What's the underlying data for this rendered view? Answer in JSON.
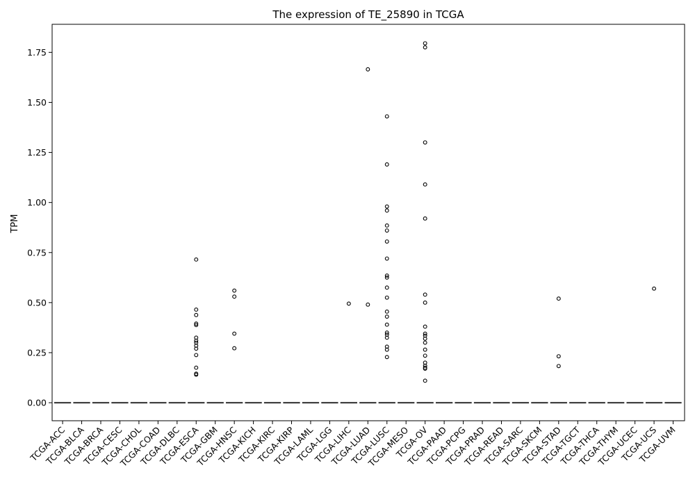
{
  "chart_data": {
    "type": "box",
    "title": "The expression of TE_25890 in TCGA",
    "xlabel": "",
    "ylabel": "TPM",
    "ylim": [
      -0.09,
      1.89
    ],
    "yticks": [
      0.0,
      0.25,
      0.5,
      0.75,
      1.0,
      1.25,
      1.5,
      1.75
    ],
    "ytick_labels": [
      "0.00",
      "0.25",
      "0.50",
      "0.75",
      "1.00",
      "1.25",
      "1.50",
      "1.75"
    ],
    "grid": false,
    "legend": "none",
    "colors": {
      "box_line": "#3f3f3f",
      "outlier": "#000000",
      "axis": "#000000"
    },
    "categories": [
      "TCGA-ACC",
      "TCGA-BLCA",
      "TCGA-BRCA",
      "TCGA-CESC",
      "TCGA-CHOL",
      "TCGA-COAD",
      "TCGA-DLBC",
      "TCGA-ESCA",
      "TCGA-GBM",
      "TCGA-HNSC",
      "TCGA-KICH",
      "TCGA-KIRC",
      "TCGA-KIRP",
      "TCGA-LAML",
      "TCGA-LGG",
      "TCGA-LIHC",
      "TCGA-LUAD",
      "TCGA-LUSC",
      "TCGA-MESO",
      "TCGA-OV",
      "TCGA-PAAD",
      "TCGA-PCPG",
      "TCGA-PRAD",
      "TCGA-READ",
      "TCGA-SARC",
      "TCGA-SKCM",
      "TCGA-STAD",
      "TCGA-TGCT",
      "TCGA-THCA",
      "TCGA-THYM",
      "TCGA-UCEC",
      "TCGA-UCS",
      "TCGA-UVM"
    ],
    "box_stats": {
      "q1": 0,
      "median": 0,
      "q3": 0,
      "whisker_low": 0,
      "whisker_high": 0
    },
    "outliers": {
      "TCGA-ESCA": [
        0.715,
        0.465,
        0.438,
        0.395,
        0.388,
        0.325,
        0.31,
        0.3,
        0.285,
        0.27,
        0.238,
        0.175,
        0.145,
        0.14
      ],
      "TCGA-HNSC": [
        0.56,
        0.53,
        0.345,
        0.272
      ],
      "TCGA-LIHC": [
        0.495
      ],
      "TCGA-LUAD": [
        1.665,
        0.49
      ],
      "TCGA-LUSC": [
        1.43,
        1.19,
        0.98,
        0.96,
        0.885,
        0.86,
        0.805,
        0.72,
        0.635,
        0.625,
        0.575,
        0.525,
        0.455,
        0.43,
        0.39,
        0.35,
        0.34,
        0.325,
        0.28,
        0.265,
        0.228
      ],
      "TCGA-OV": [
        1.795,
        1.775,
        1.3,
        1.09,
        0.92,
        0.54,
        0.5,
        0.38,
        0.345,
        0.335,
        0.32,
        0.3,
        0.265,
        0.235,
        0.2,
        0.185,
        0.175,
        0.17,
        0.11
      ],
      "TCGA-STAD": [
        0.52,
        0.232,
        0.183
      ],
      "TCGA-UCS": [
        0.57
      ]
    }
  }
}
